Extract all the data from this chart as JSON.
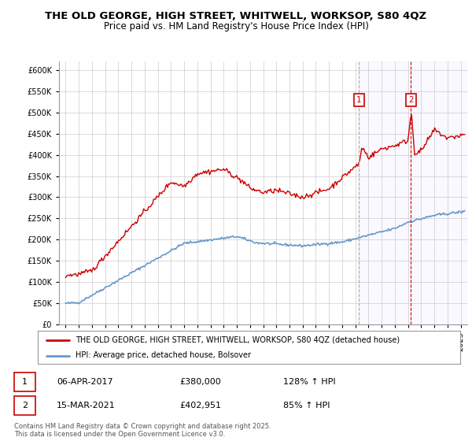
{
  "title": "THE OLD GEORGE, HIGH STREET, WHITWELL, WORKSOP, S80 4QZ",
  "subtitle": "Price paid vs. HM Land Registry's House Price Index (HPI)",
  "background_color": "#ffffff",
  "grid_color": "#cccccc",
  "plot_bg_color": "#ffffff",
  "red_line_color": "#cc0000",
  "blue_line_color": "#6699cc",
  "marker1_date_x": 2017.27,
  "marker2_date_x": 2021.21,
  "marker1_price": 380000,
  "marker2_price": 402951,
  "marker1_label": "06-APR-2017",
  "marker2_label": "15-MAR-2021",
  "marker1_pct": "128% ↑ HPI",
  "marker2_pct": "85% ↑ HPI",
  "legend_label_red": "THE OLD GEORGE, HIGH STREET, WHITWELL, WORKSOP, S80 4QZ (detached house)",
  "legend_label_blue": "HPI: Average price, detached house, Bolsover",
  "footnote": "Contains HM Land Registry data © Crown copyright and database right 2025.\nThis data is licensed under the Open Government Licence v3.0.",
  "ylim_min": 0,
  "ylim_max": 620000,
  "xlim_min": 1994.5,
  "xlim_max": 2025.5,
  "title_fontsize": 9.5,
  "subtitle_fontsize": 8.5,
  "tick_fontsize": 7
}
